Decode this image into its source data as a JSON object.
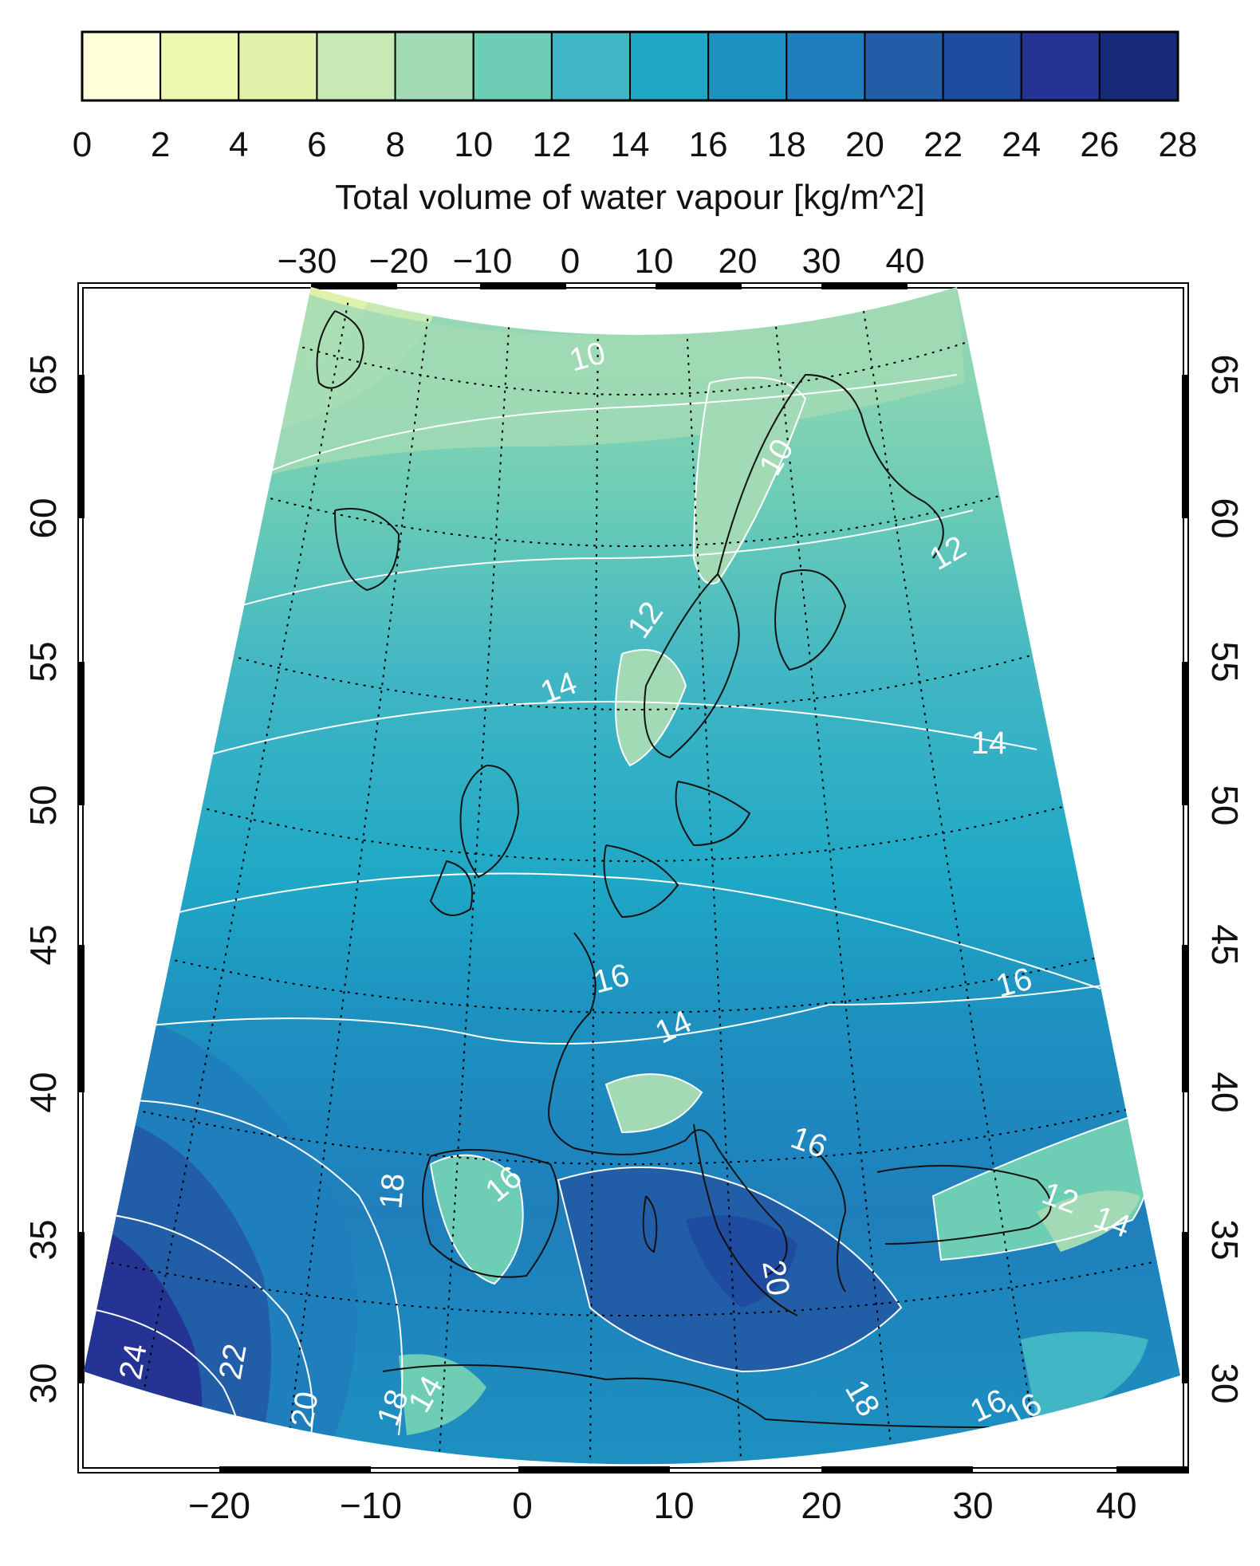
{
  "colorbar": {
    "label": "Total volume of water vapour [kg/m^2]",
    "ticks": [
      "0",
      "2",
      "4",
      "6",
      "8",
      "10",
      "12",
      "14",
      "16",
      "18",
      "20",
      "22",
      "24",
      "26",
      "28"
    ],
    "colors": [
      "#ffffd9",
      "#edf8b1",
      "#e0f2a9",
      "#c7e9b4",
      "#a1dab4",
      "#6dcdb5",
      "#41b6c4",
      "#1fa8c6",
      "#1d91c0",
      "#1f7fbc",
      "#225ea8",
      "#1f4ba0",
      "#253494",
      "#172a78"
    ]
  },
  "map": {
    "lon_labels_top": [
      "−30",
      "−20",
      "−10",
      "0",
      "10",
      "20",
      "30",
      "40"
    ],
    "lon_labels_bottom": [
      "−20",
      "−10",
      "0",
      "10",
      "20",
      "30",
      "40"
    ],
    "lat_labels_left": [
      "30",
      "35",
      "40",
      "45",
      "50",
      "55",
      "60",
      "65"
    ],
    "lat_labels_right": [
      "30",
      "35",
      "40",
      "45",
      "50",
      "55",
      "60",
      "65"
    ]
  },
  "contour_labels": [
    "10",
    "10",
    "12",
    "12",
    "14",
    "14",
    "14",
    "14",
    "16",
    "16",
    "16",
    "16",
    "16",
    "18",
    "18",
    "18",
    "20",
    "20",
    "22",
    "24",
    "12",
    "14",
    "16"
  ],
  "colors": {
    "frame": "#000000",
    "coastline": "#111111",
    "contour_line": "#ffffff",
    "graticule": "#000000"
  }
}
